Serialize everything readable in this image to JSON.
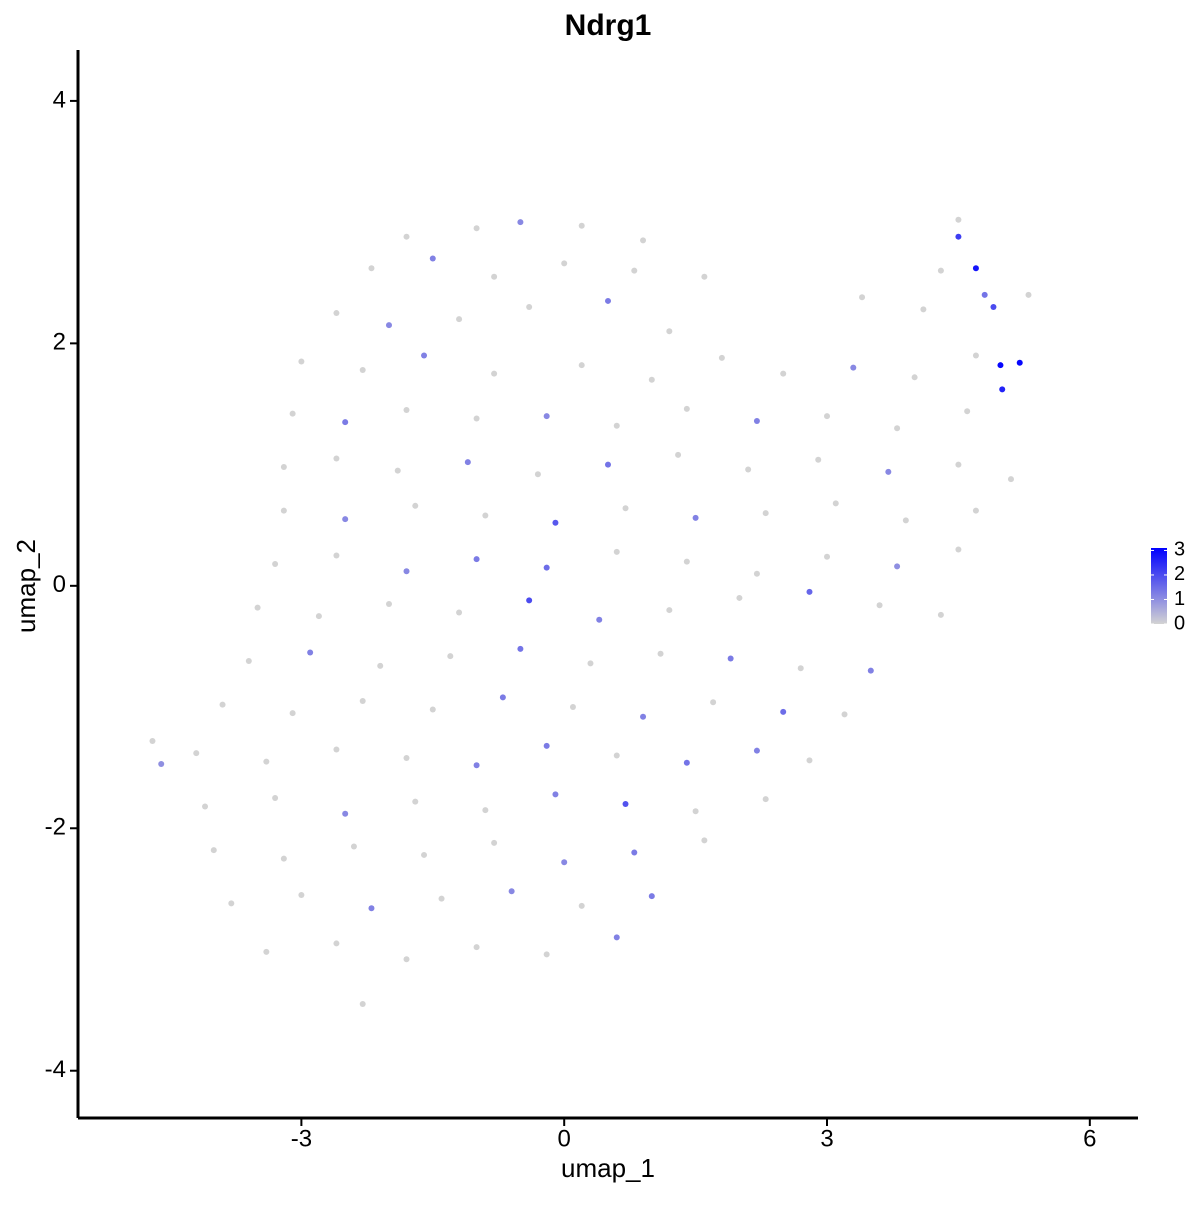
{
  "chart_data": {
    "type": "scatter",
    "title": "Ndrg1",
    "x_label": "umap_1",
    "y_label": "umap_2",
    "xlim": [
      -5.55,
      6.55
    ],
    "ylim": [
      -4.39,
      4.42
    ],
    "xticks": [
      -3,
      0,
      3,
      6
    ],
    "yticks": [
      -4,
      -2,
      0,
      2,
      4
    ],
    "low_color": "#d3d3d3",
    "high_color": "#0000ff",
    "color_lim": [
      0,
      3.1
    ],
    "color_ticks": [
      0,
      1,
      2,
      3
    ],
    "x": [
      -1.8,
      -1.0,
      -0.5,
      0.2,
      0.9,
      4.5,
      -2.2,
      -1.5,
      -0.8,
      0.0,
      0.8,
      1.6,
      4.3,
      4.8,
      -2.6,
      -2.0,
      -1.2,
      -0.4,
      0.5,
      1.2,
      3.4,
      4.1,
      4.9,
      5.3,
      -3.0,
      -2.3,
      -1.6,
      -0.8,
      0.2,
      1.0,
      1.8,
      2.5,
      3.3,
      4.0,
      4.7,
      5.2,
      -3.1,
      -2.5,
      -1.8,
      -1.0,
      -0.2,
      0.6,
      1.4,
      2.2,
      3.0,
      3.8,
      4.6,
      5.0,
      -3.2,
      -2.6,
      -1.9,
      -1.1,
      -0.3,
      0.5,
      1.3,
      2.1,
      2.9,
      3.7,
      4.5,
      5.1,
      -3.2,
      -2.5,
      -1.7,
      -0.9,
      -0.1,
      0.7,
      1.5,
      2.3,
      3.1,
      3.9,
      4.7,
      -3.3,
      -2.6,
      -1.8,
      -1.0,
      -0.2,
      0.6,
      1.4,
      2.2,
      3.0,
      3.8,
      4.5,
      -3.5,
      -2.8,
      -2.0,
      -1.2,
      -0.4,
      0.4,
      1.2,
      2.0,
      2.8,
      3.6,
      4.3,
      -3.6,
      -2.9,
      -2.1,
      -1.3,
      -0.5,
      0.3,
      1.1,
      1.9,
      2.7,
      3.5,
      -3.9,
      -3.1,
      -2.3,
      -1.5,
      -0.7,
      0.1,
      0.9,
      1.7,
      2.5,
      3.2,
      -4.2,
      -3.4,
      -2.6,
      -1.8,
      -1.0,
      -0.2,
      0.6,
      1.4,
      2.2,
      2.8,
      -4.1,
      -3.3,
      -2.5,
      -1.7,
      -0.9,
      -0.1,
      0.7,
      1.5,
      2.3,
      -4.0,
      -3.2,
      -2.4,
      -1.6,
      -0.8,
      0.0,
      0.8,
      1.6,
      -3.8,
      -3.0,
      -2.2,
      -1.4,
      -0.6,
      0.2,
      1.0,
      -3.4,
      -2.6,
      -1.8,
      -1.0,
      -0.2,
      0.6,
      -2.3,
      -4.7,
      -4.6,
      4.5,
      4.7,
      4.98
    ],
    "values": [
      2.88,
      2.95,
      3.0,
      2.97,
      2.85,
      3.02,
      2.62,
      2.7,
      2.55,
      2.66,
      2.6,
      2.55,
      2.6,
      2.4,
      2.25,
      2.15,
      2.2,
      2.3,
      2.35,
      2.1,
      2.38,
      2.28,
      2.3,
      2.4,
      1.85,
      1.78,
      1.9,
      1.75,
      1.82,
      1.7,
      1.88,
      1.75,
      1.8,
      1.72,
      1.9,
      1.84,
      1.42,
      1.35,
      1.45,
      1.38,
      1.4,
      1.32,
      1.46,
      1.36,
      1.4,
      1.3,
      1.44,
      1.62,
      0.98,
      1.05,
      0.95,
      1.02,
      0.92,
      1.0,
      1.08,
      0.96,
      1.04,
      0.94,
      1.0,
      0.88,
      0.62,
      0.55,
      0.66,
      0.58,
      0.52,
      0.64,
      0.56,
      0.6,
      0.68,
      0.54,
      0.62,
      0.18,
      0.25,
      0.12,
      0.22,
      0.15,
      0.28,
      0.2,
      0.1,
      0.24,
      0.16,
      0.3,
      -0.18,
      -0.25,
      -0.15,
      -0.22,
      -0.12,
      -0.28,
      -0.2,
      -0.1,
      -0.05,
      -0.16,
      -0.24,
      -0.62,
      -0.55,
      -0.66,
      -0.58,
      -0.52,
      -0.64,
      -0.56,
      -0.6,
      -0.68,
      -0.7,
      -0.98,
      -1.05,
      -0.95,
      -1.02,
      -0.92,
      -1.0,
      -1.08,
      -0.96,
      -1.04,
      -1.06,
      -1.38,
      -1.45,
      -1.35,
      -1.42,
      -1.48,
      -1.32,
      -1.4,
      -1.46,
      -1.36,
      -1.44,
      -1.82,
      -1.75,
      -1.88,
      -1.78,
      -1.85,
      -1.72,
      -1.8,
      -1.86,
      -1.76,
      -2.18,
      -2.25,
      -2.15,
      -2.22,
      -2.12,
      -2.28,
      -2.2,
      -2.1,
      -2.62,
      -2.55,
      -2.66,
      -2.58,
      -2.52,
      -2.64,
      -2.56,
      -3.02,
      -2.95,
      -3.08,
      -2.98,
      -3.04,
      -2.9,
      -3.45,
      -1.28,
      -1.47,
      2.88,
      2.62,
      1.82
    ],
    "expression": [
      0,
      0,
      1.1,
      0,
      0,
      0,
      0,
      1.2,
      0,
      0,
      0,
      0,
      0,
      1.4,
      0,
      1.1,
      0,
      0,
      1.3,
      0,
      0,
      0,
      2.0,
      0,
      0,
      0,
      1.2,
      0,
      0,
      0,
      0,
      0,
      1.1,
      0,
      0,
      3.0,
      0,
      1.3,
      0,
      0,
      1.1,
      0,
      0,
      1.2,
      0,
      0,
      0,
      2.6,
      0,
      0,
      0,
      1.2,
      0,
      1.4,
      0,
      0,
      0,
      1.1,
      0,
      0,
      0,
      1.1,
      0,
      0,
      1.8,
      0,
      1.2,
      0,
      0,
      0,
      0,
      0,
      0,
      1.1,
      1.3,
      1.5,
      0,
      0,
      0,
      0,
      1.0,
      0,
      0,
      0,
      0,
      0,
      2.0,
      1.2,
      0,
      0,
      1.6,
      0,
      0,
      0,
      1.2,
      0,
      0,
      1.4,
      0,
      0,
      1.3,
      0,
      1.2,
      0,
      0,
      0,
      0,
      1.3,
      0,
      1.2,
      0,
      1.5,
      0,
      0,
      0,
      0,
      0,
      1.2,
      1.3,
      0,
      1.4,
      1.2,
      0,
      0,
      0,
      1.1,
      0,
      0,
      1.2,
      1.9,
      0,
      0,
      0,
      0,
      0,
      0,
      0,
      1.1,
      1.3,
      0,
      0,
      0,
      1.2,
      0,
      1.1,
      0,
      1.3,
      0,
      0,
      0,
      0,
      0,
      1.2,
      0,
      0,
      1.0,
      2.2,
      2.8,
      3.0
    ]
  }
}
